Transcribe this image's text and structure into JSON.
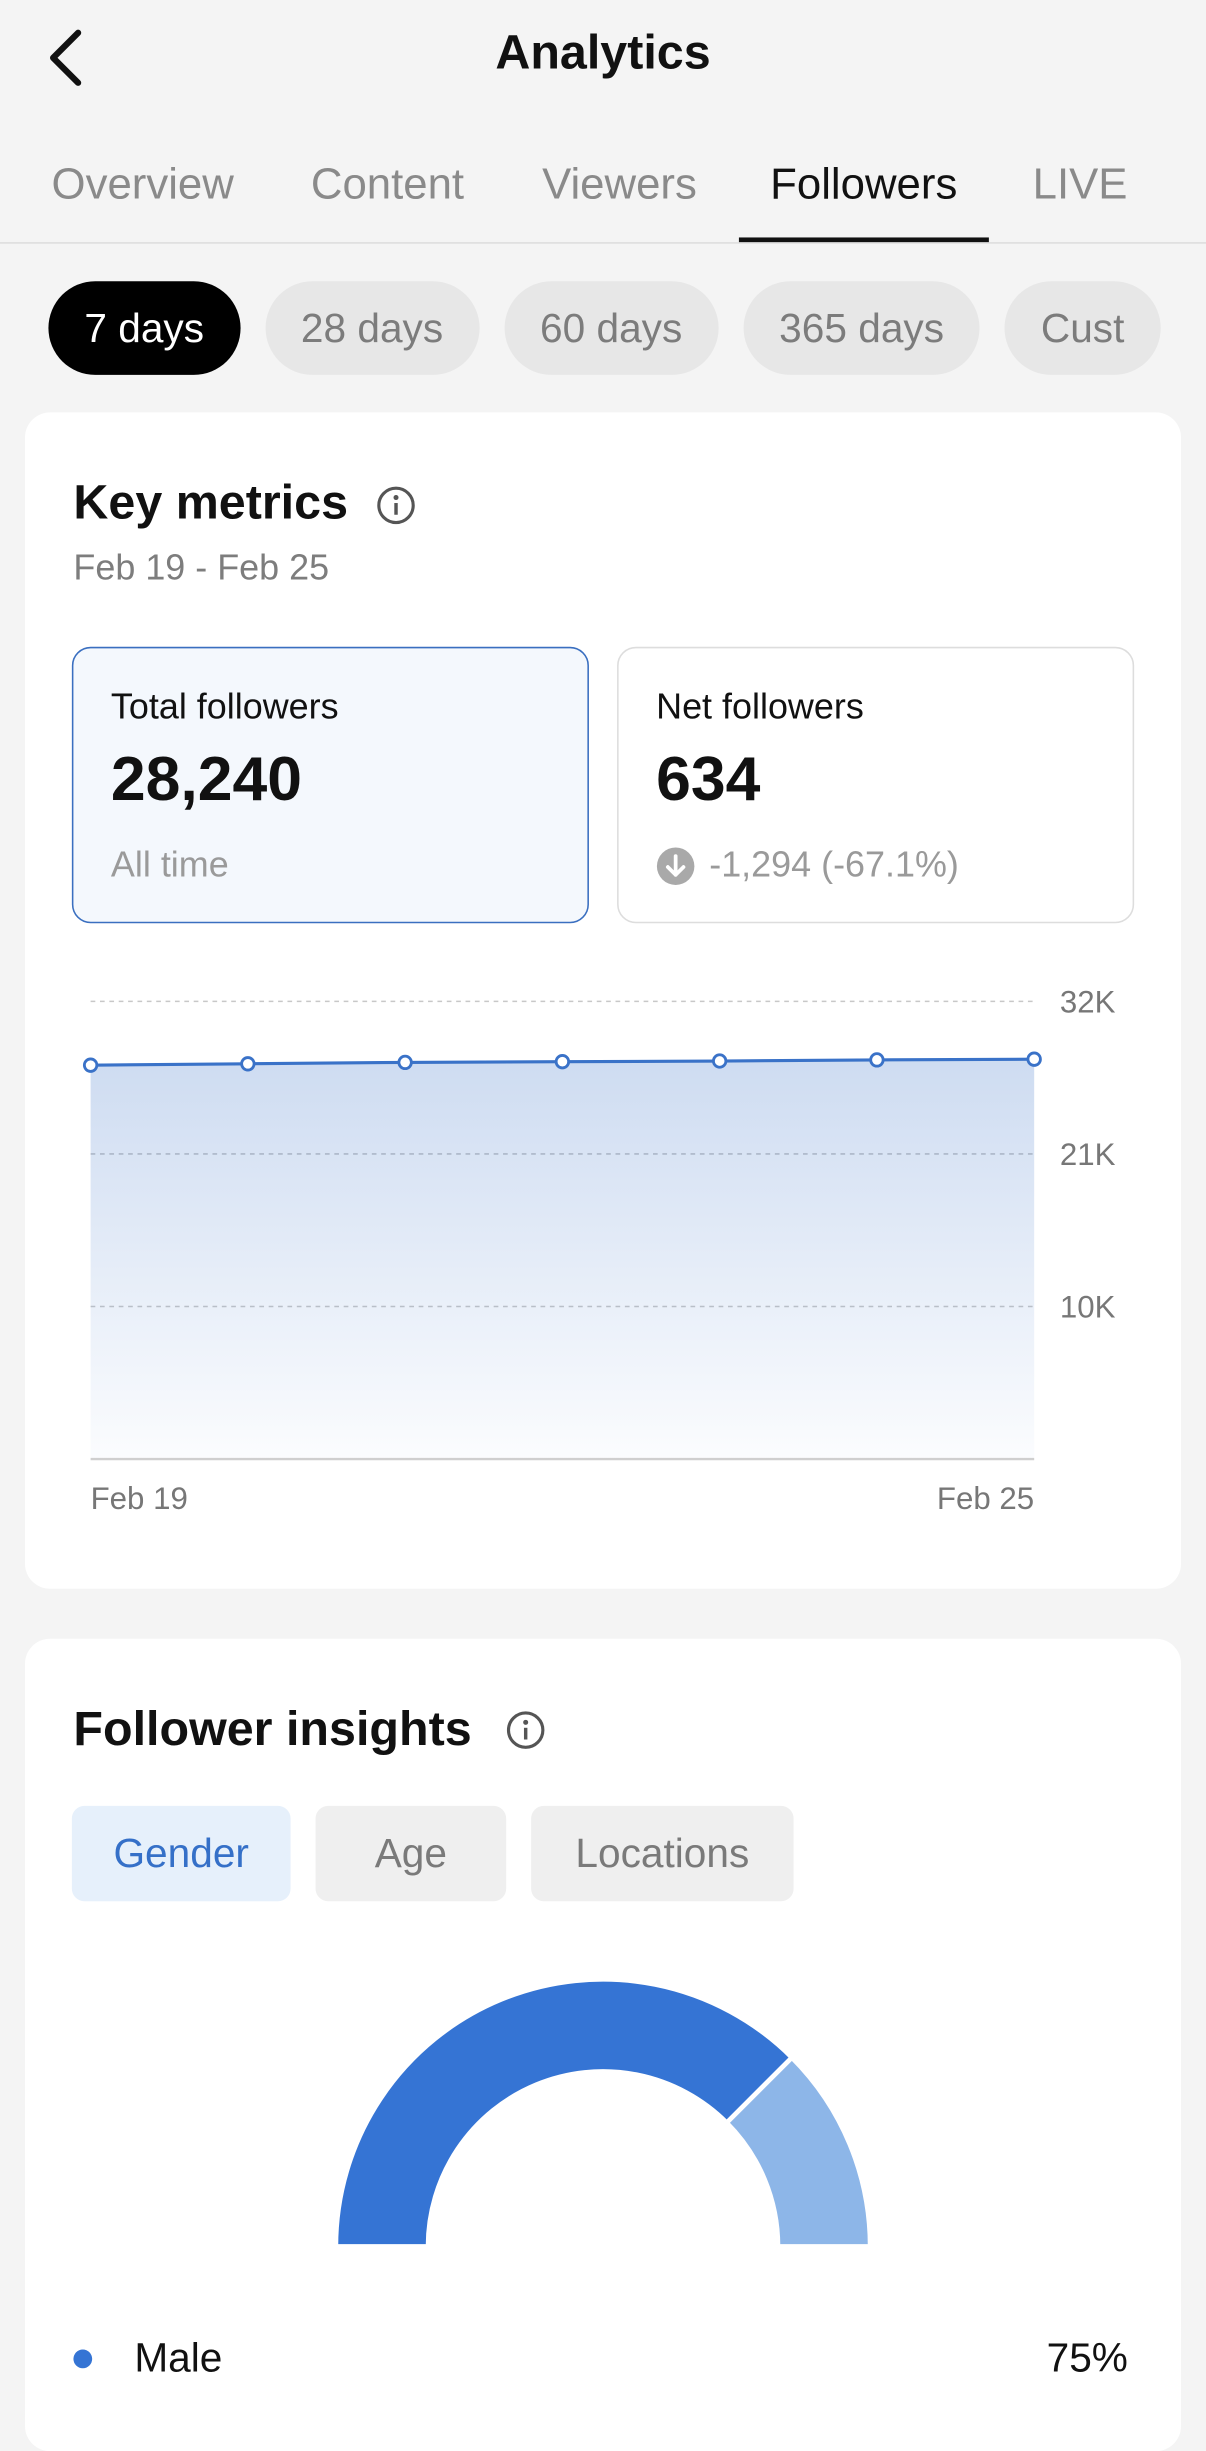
{
  "header": {
    "title": "Analytics"
  },
  "tabs": {
    "items": [
      "Overview",
      "Content",
      "Viewers",
      "Followers",
      "LIVE"
    ],
    "active": 3
  },
  "ranges": {
    "items": [
      "7 days",
      "28 days",
      "60 days",
      "365 days",
      "Cust"
    ],
    "active": 0
  },
  "key_metrics": {
    "title": "Key metrics",
    "date_range": "Feb 19 - Feb 25",
    "cards": [
      {
        "label": "Total followers",
        "value": "28,240",
        "note": "All time"
      },
      {
        "label": "Net followers",
        "value": "634",
        "note": "-1,294 (-67.1%)"
      }
    ]
  },
  "follower_insights": {
    "title": "Follower insights",
    "tabs": [
      "Gender",
      "Age",
      "Locations"
    ],
    "active": 0
  },
  "chart_data": [
    {
      "type": "line",
      "categories": [
        "Feb 19",
        null,
        null,
        null,
        null,
        null,
        "Feb 25"
      ],
      "values": [
        27400,
        27500,
        27600,
        27650,
        27700,
        27780,
        27830
      ],
      "color": "#3a72c8",
      "ylim": [
        -1000,
        32000
      ],
      "yticks": [
        {
          "value": 10000,
          "label": "10K"
        },
        {
          "value": 21000,
          "label": "21K"
        },
        {
          "value": 32000,
          "label": "32K"
        }
      ],
      "grid": true
    },
    {
      "type": "pie",
      "categories": [
        "Male",
        null
      ],
      "values": [
        75,
        25
      ],
      "value_labels": [
        "75%",
        null
      ],
      "colors": [
        "#3574d4",
        "#8db6e8"
      ]
    }
  ]
}
